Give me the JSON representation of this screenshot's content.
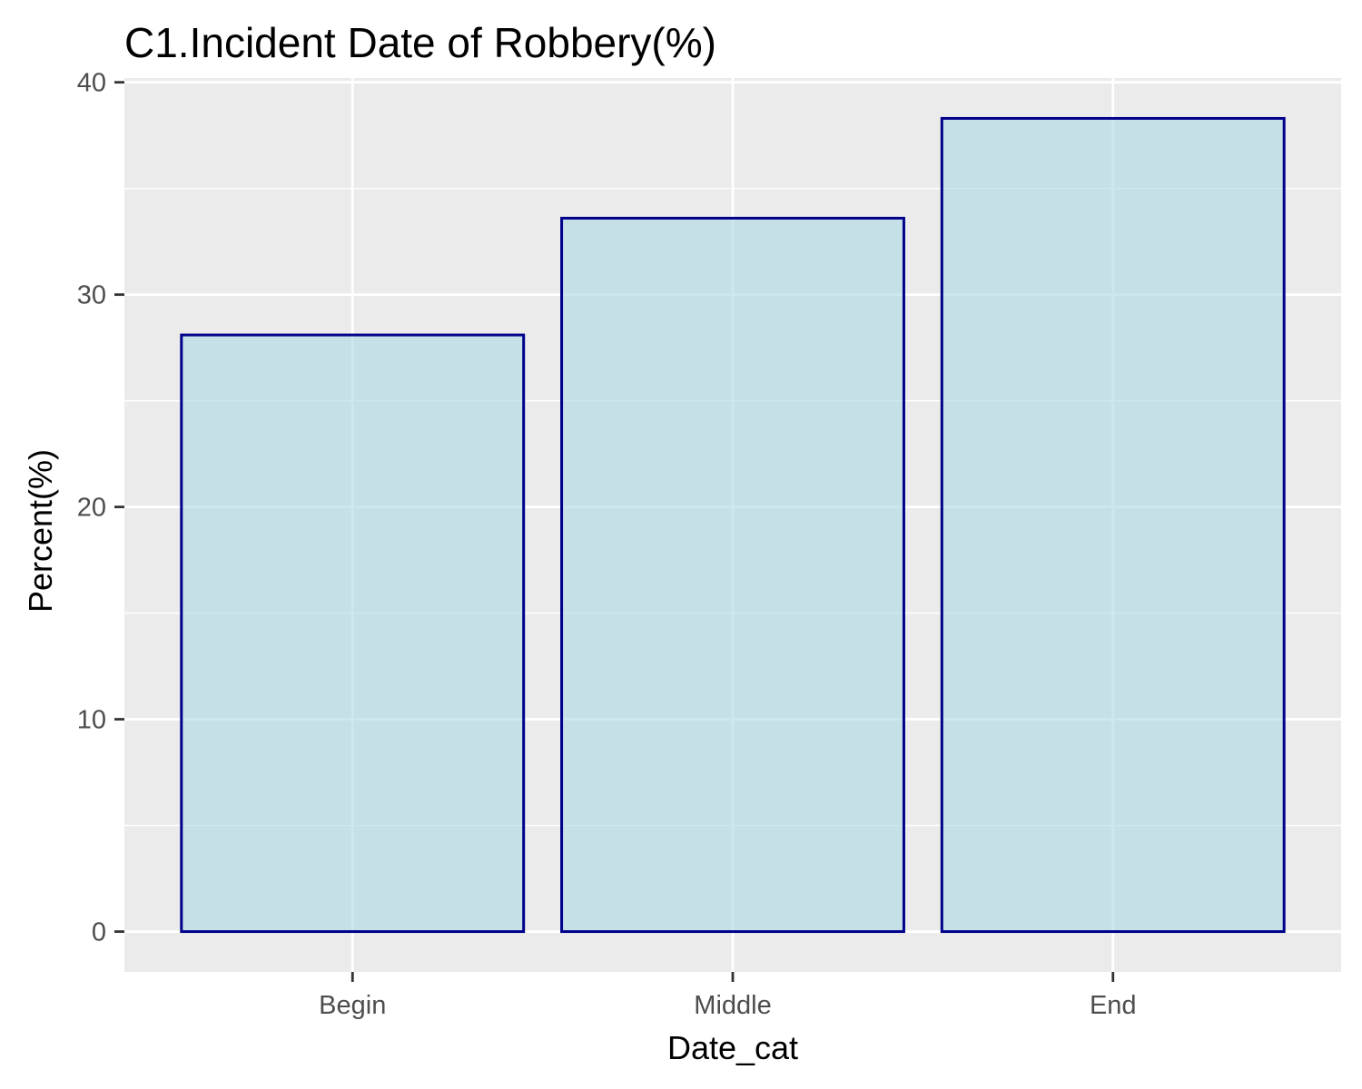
{
  "chart_data": {
    "type": "bar",
    "title": "C1.Incident Date of Robbery(%)",
    "xlabel": "Date_cat",
    "ylabel": "Percent(%)",
    "categories": [
      "Begin",
      "Middle",
      "End"
    ],
    "values": [
      28.1,
      33.6,
      38.3
    ],
    "ylim": [
      -1.9,
      40.2
    ],
    "yticks": [
      "0",
      "10",
      "20",
      "30",
      "40"
    ],
    "grid": true,
    "colors": {
      "panel_background": "#ebebeb",
      "grid": "#ffffff",
      "bar_fill": "#add8e6",
      "bar_outline": "#00008b"
    }
  }
}
